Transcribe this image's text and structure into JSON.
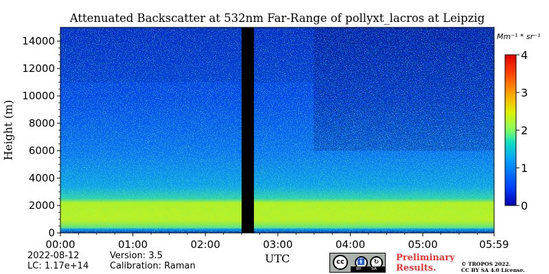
{
  "chart_data": {
    "type": "heatmap",
    "title": "Attenuated Backscatter at 532nm Far-Range of pollyxt_lacros at Leipzig",
    "xlabel": "UTC",
    "ylabel": "Height (m)",
    "x_ticks": [
      "00:00",
      "01:00",
      "02:00",
      "03:00",
      "04:00",
      "05:00",
      "05:59"
    ],
    "x_tick_hours": [
      0,
      1,
      2,
      3,
      4,
      5,
      5.983
    ],
    "xlim_hours": [
      0,
      5.983
    ],
    "y_ticks": [
      0,
      2000,
      4000,
      6000,
      8000,
      10000,
      12000,
      14000
    ],
    "ylim": [
      0,
      15000
    ],
    "colorbar": {
      "label": "Mm^-1*sr^-1",
      "label_display": "Mm⁻¹ * sr⁻¹",
      "ticks": [
        0,
        1,
        2,
        3,
        4
      ],
      "range": [
        0,
        4
      ],
      "colormap": "jet"
    },
    "data_gap_hours": [
      2.5,
      2.67
    ],
    "features": {
      "boundary_layer_top_m": 2200,
      "high_signal_band_m": [
        300,
        2200
      ],
      "low_signal_near_surface_m": [
        0,
        300
      ],
      "noise_increase_after_hours": 3.5
    }
  },
  "footer": {
    "date": "2022-08-12",
    "lc": "LC: 1.17e+14",
    "version": "Version: 3.5",
    "calibration": "Calibration: Raman",
    "preliminary_line1": "Preliminary",
    "preliminary_line2": "Results.",
    "copyright_line1": "© TROPOS 2022.",
    "copyright_line2": "CC BY SA 4.0 License.",
    "license_badge": {
      "main": "cc",
      "by": "BY",
      "sa": "SA"
    }
  },
  "colors": {
    "gap": "#000000",
    "background": "#ffffff",
    "prelim_text": "#ff3030"
  }
}
